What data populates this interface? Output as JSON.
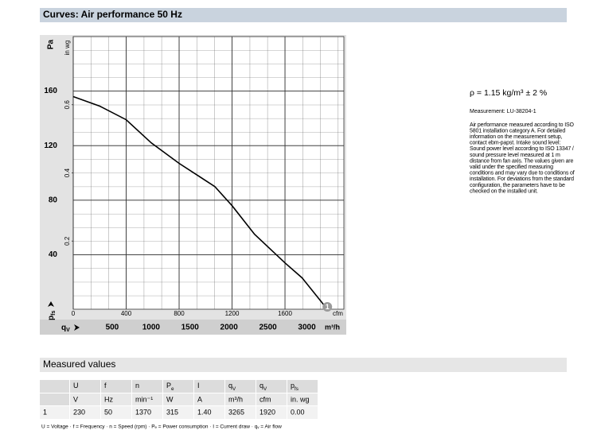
{
  "chart_data": {
    "type": "line",
    "title": "Curves: Air performance 50 Hz",
    "y_label": "Pa",
    "y2_label": "in wg",
    "pressure_label": {
      "text": "p",
      "sub": "fs"
    },
    "x_label": "cfm",
    "x2_label": "m³/h",
    "flow_label": {
      "text": "q",
      "sub": "V"
    },
    "x": [
      0,
      200,
      400,
      590,
      800,
      1070,
      1200,
      1370,
      1600,
      1730,
      1920
    ],
    "values": [
      156,
      149,
      139,
      122,
      107,
      90,
      76,
      55,
      34,
      23,
      0
    ],
    "color": "#000000",
    "point_label": "1",
    "xlim": [
      0,
      2045
    ],
    "xticks": [
      0,
      400,
      800,
      1200,
      1600
    ],
    "x2lim": [
      0,
      3475
    ],
    "x2ticks": [
      500,
      1000,
      1500,
      2000,
      2500,
      3000
    ],
    "ylim": [
      0,
      200
    ],
    "yticks": [
      40,
      80,
      120,
      160
    ],
    "y2lim": [
      0,
      0.8
    ],
    "y2ticks": [
      0.2,
      0.4,
      0.6
    ],
    "grid": true
  },
  "conditions": {
    "density": "ρ = 1.15 kg/m³ ± 2 %",
    "measurement": "Measurement: LU-38204-1",
    "notes": [
      "Air performance measured according to ISO",
      "5801 installation category A. For detailed",
      "information on the measurement setup,",
      "contact ebm-papst. Intake sound level:",
      "Sound power level according to ISO 13347 /",
      "sound pressure level measured at 1 m",
      "distance from fan axis. The values given are",
      "valid under the specified measuring",
      "conditions and may vary due to conditions of",
      "installation. For deviations from the standard",
      "configuration, the parameters have to be",
      "checked on the installed unit."
    ]
  },
  "table": {
    "title": "Measured values",
    "header": [
      {
        "text": "U"
      },
      {
        "text": "f"
      },
      {
        "text": "n"
      },
      {
        "text": "P",
        "sub": "e"
      },
      {
        "text": "I"
      },
      {
        "text": "q",
        "sub": "V"
      },
      {
        "text": "q",
        "sub": "V"
      },
      {
        "text": "p",
        "sub": "fs"
      }
    ],
    "units": [
      "V",
      "Hz",
      "min⁻¹",
      "W",
      "A",
      "m³/h",
      "cfm",
      "in. wg"
    ],
    "rows": [
      [
        "1",
        "230",
        "50",
        "1370",
        "315",
        "1.40",
        "3265",
        "1920",
        "0.00"
      ]
    ],
    "footnote": "U = Voltage · f = Frequency · n = Speed (rpm) · Pₑ = Power consumption · I = Current draw · qᵥ = Air flow"
  }
}
